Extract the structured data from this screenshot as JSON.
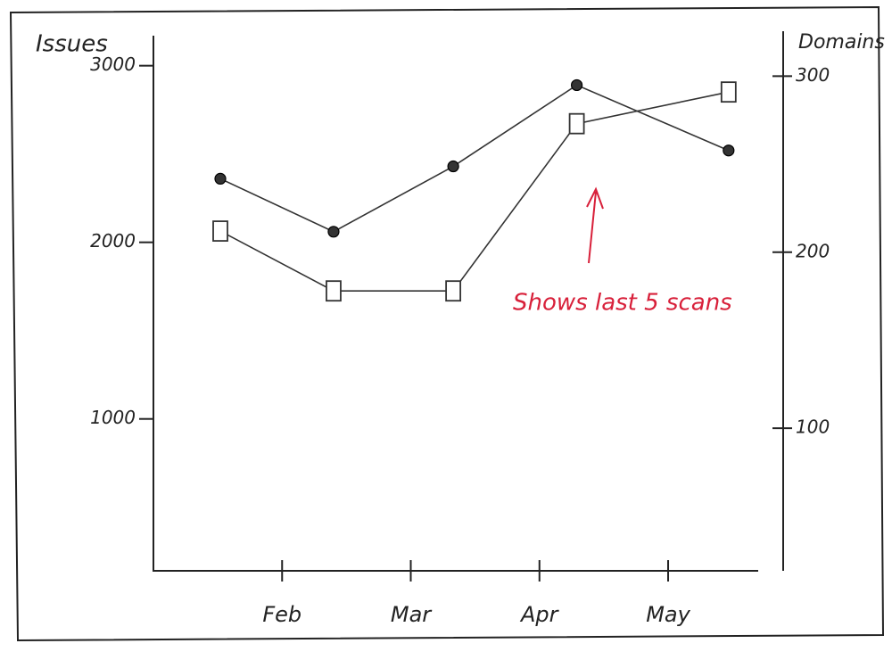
{
  "chart_data": {
    "type": "line",
    "y_label": "Issues",
    "y2_label": "Domains",
    "annotation": "Shows last 5 scans",
    "x": [
      1.52,
      2.4,
      3.33,
      4.29,
      5.47
    ],
    "xlim": [
      1.0,
      5.7
    ],
    "xticks": [
      {
        "value": 2,
        "label": "Feb"
      },
      {
        "value": 3,
        "label": "Mar"
      },
      {
        "value": 4,
        "label": "Apr"
      },
      {
        "value": 5,
        "label": "May"
      }
    ],
    "ylim": [
      140,
      3170
    ],
    "yticks": [
      1000,
      2000,
      3000
    ],
    "y2lim": [
      19,
      323
    ],
    "y2ticks": [
      100,
      200,
      300
    ],
    "series": [
      {
        "marker": "circle",
        "color": "#333333",
        "values": [
          2360,
          2060,
          2430,
          2890,
          2520
        ]
      },
      {
        "marker": "square",
        "color": "#333333",
        "axis": "y2",
        "values": [
          212,
          178,
          178,
          273,
          291
        ]
      }
    ]
  }
}
